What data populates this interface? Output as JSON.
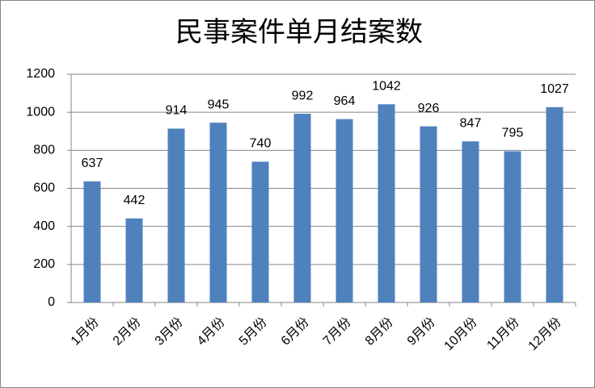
{
  "chart_data": {
    "type": "bar",
    "title": "民事案件单月结案数",
    "categories": [
      "1月份",
      "2月份",
      "3月份",
      "4月份",
      "5月份",
      "6月份",
      "7月份",
      "8月份",
      "9月份",
      "10月份",
      "11月份",
      "12月份"
    ],
    "values": [
      637,
      442,
      914,
      945,
      740,
      992,
      964,
      1042,
      926,
      847,
      795,
      1027
    ],
    "color": "#4f81bd",
    "ylim": [
      0,
      1200
    ],
    "yticks": [
      0,
      200,
      400,
      600,
      800,
      1000,
      1200
    ],
    "grid": true
  }
}
